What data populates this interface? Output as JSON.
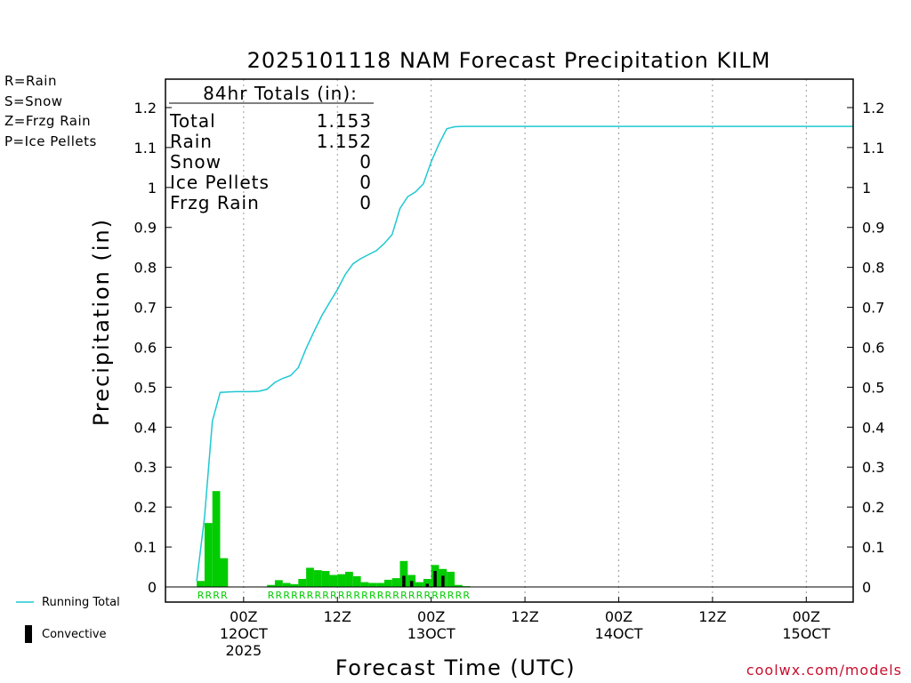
{
  "chart_data": {
    "type": "bar",
    "title": "2025101118 NAM Forecast Precipitation KILM",
    "xlabel": "Forecast Time (UTC)",
    "ylabel": "Precipitation (in)",
    "ylim": [
      0,
      1.25
    ],
    "yticks": [
      0,
      0.1,
      0.2,
      0.3,
      0.4,
      0.5,
      0.6,
      0.7,
      0.8,
      0.9,
      1,
      1.1,
      1.2
    ],
    "ytick_labels": [
      "0",
      "0.1",
      "0.2",
      "0.3",
      "0.4",
      "0.5",
      "0.6",
      "0.7",
      "0.8",
      "0.9",
      "1",
      "1.1",
      "1.2"
    ],
    "x_unit": "forecast hour",
    "xlim": [
      -4,
      84
    ],
    "xticks": [
      {
        "hour": 6,
        "lines": [
          "00Z",
          "12OCT",
          "2025"
        ]
      },
      {
        "hour": 18,
        "lines": [
          "12Z"
        ]
      },
      {
        "hour": 30,
        "lines": [
          "00Z",
          "13OCT"
        ]
      },
      {
        "hour": 42,
        "lines": [
          "12Z"
        ]
      },
      {
        "hour": 54,
        "lines": [
          "00Z",
          "14OCT"
        ]
      },
      {
        "hour": 66,
        "lines": [
          "12Z"
        ]
      },
      {
        "hour": 78,
        "lines": [
          "00Z",
          "15OCT"
        ]
      }
    ],
    "grid": "vertical dotted at tick hours",
    "bar_width_hours": 1,
    "series": [
      {
        "name": "Rain",
        "color": "#00cc00",
        "hours": [
          0,
          1,
          2,
          3,
          9,
          10,
          11,
          12,
          13,
          14,
          15,
          16,
          17,
          18,
          19,
          20,
          21,
          22,
          23,
          24,
          25,
          26,
          27,
          28,
          29,
          30,
          31,
          32,
          33,
          34
        ],
        "values": [
          0.015,
          0.16,
          0.24,
          0.072,
          0.005,
          0.017,
          0.01,
          0.007,
          0.02,
          0.048,
          0.042,
          0.04,
          0.03,
          0.032,
          0.038,
          0.027,
          0.012,
          0.01,
          0.01,
          0.018,
          0.022,
          0.065,
          0.03,
          0.012,
          0.02,
          0.055,
          0.045,
          0.038,
          0.005,
          0.002
        ]
      },
      {
        "name": "Convective",
        "color": "#000000",
        "hours": [
          26,
          27,
          29,
          30,
          31
        ],
        "values": [
          0.028,
          0.015,
          0.008,
          0.04,
          0.028
        ]
      },
      {
        "name": "Running Total",
        "color": "#1ec8d2",
        "type": "line",
        "hours": [
          0,
          1,
          2,
          3,
          4,
          5,
          6,
          7,
          8,
          9,
          10,
          11,
          12,
          13,
          14,
          15,
          16,
          17,
          18,
          19,
          20,
          21,
          22,
          23,
          24,
          25,
          26,
          27,
          28,
          29,
          30,
          31,
          32,
          33,
          34,
          84
        ],
        "values": [
          0.015,
          0.175,
          0.415,
          0.487,
          0.488,
          0.489,
          0.489,
          0.489,
          0.49,
          0.495,
          0.512,
          0.522,
          0.529,
          0.549,
          0.597,
          0.639,
          0.679,
          0.712,
          0.744,
          0.782,
          0.809,
          0.822,
          0.832,
          0.842,
          0.86,
          0.882,
          0.947,
          0.977,
          0.989,
          1.009,
          1.064,
          1.109,
          1.147,
          1.152,
          1.153,
          1.153
        ]
      }
    ],
    "ptype_marks": {
      "color": "#00cc00",
      "hours": [
        0,
        1,
        2,
        3,
        9,
        10,
        11,
        12,
        13,
        14,
        15,
        16,
        17,
        18,
        19,
        20,
        21,
        22,
        23,
        24,
        25,
        26,
        27,
        28,
        29,
        30,
        31,
        32,
        33,
        34
      ],
      "label": "R"
    },
    "totals_box": {
      "heading": "84hr Totals (in):",
      "rows": [
        {
          "label": "Total",
          "value": "1.153"
        },
        {
          "label": "Rain",
          "value": "1.152"
        },
        {
          "label": "Snow",
          "value": "0"
        },
        {
          "label": "Ice Pellets",
          "value": "0"
        },
        {
          "label": "Frzg Rain",
          "value": "0"
        }
      ]
    }
  },
  "ptype_legend": [
    {
      "text": "R=Rain",
      "color": "#00cc00"
    },
    {
      "text": "S=Snow",
      "color": "#3a5ad9"
    },
    {
      "text": "Z=Frzg Rain",
      "color": "#e8902a"
    },
    {
      "text": "P=Ice Pellets",
      "color": "#e0207a"
    }
  ],
  "line_legend": {
    "running_total": "Running Total",
    "convective": "Convective"
  },
  "credit": "coolwx.com/models"
}
